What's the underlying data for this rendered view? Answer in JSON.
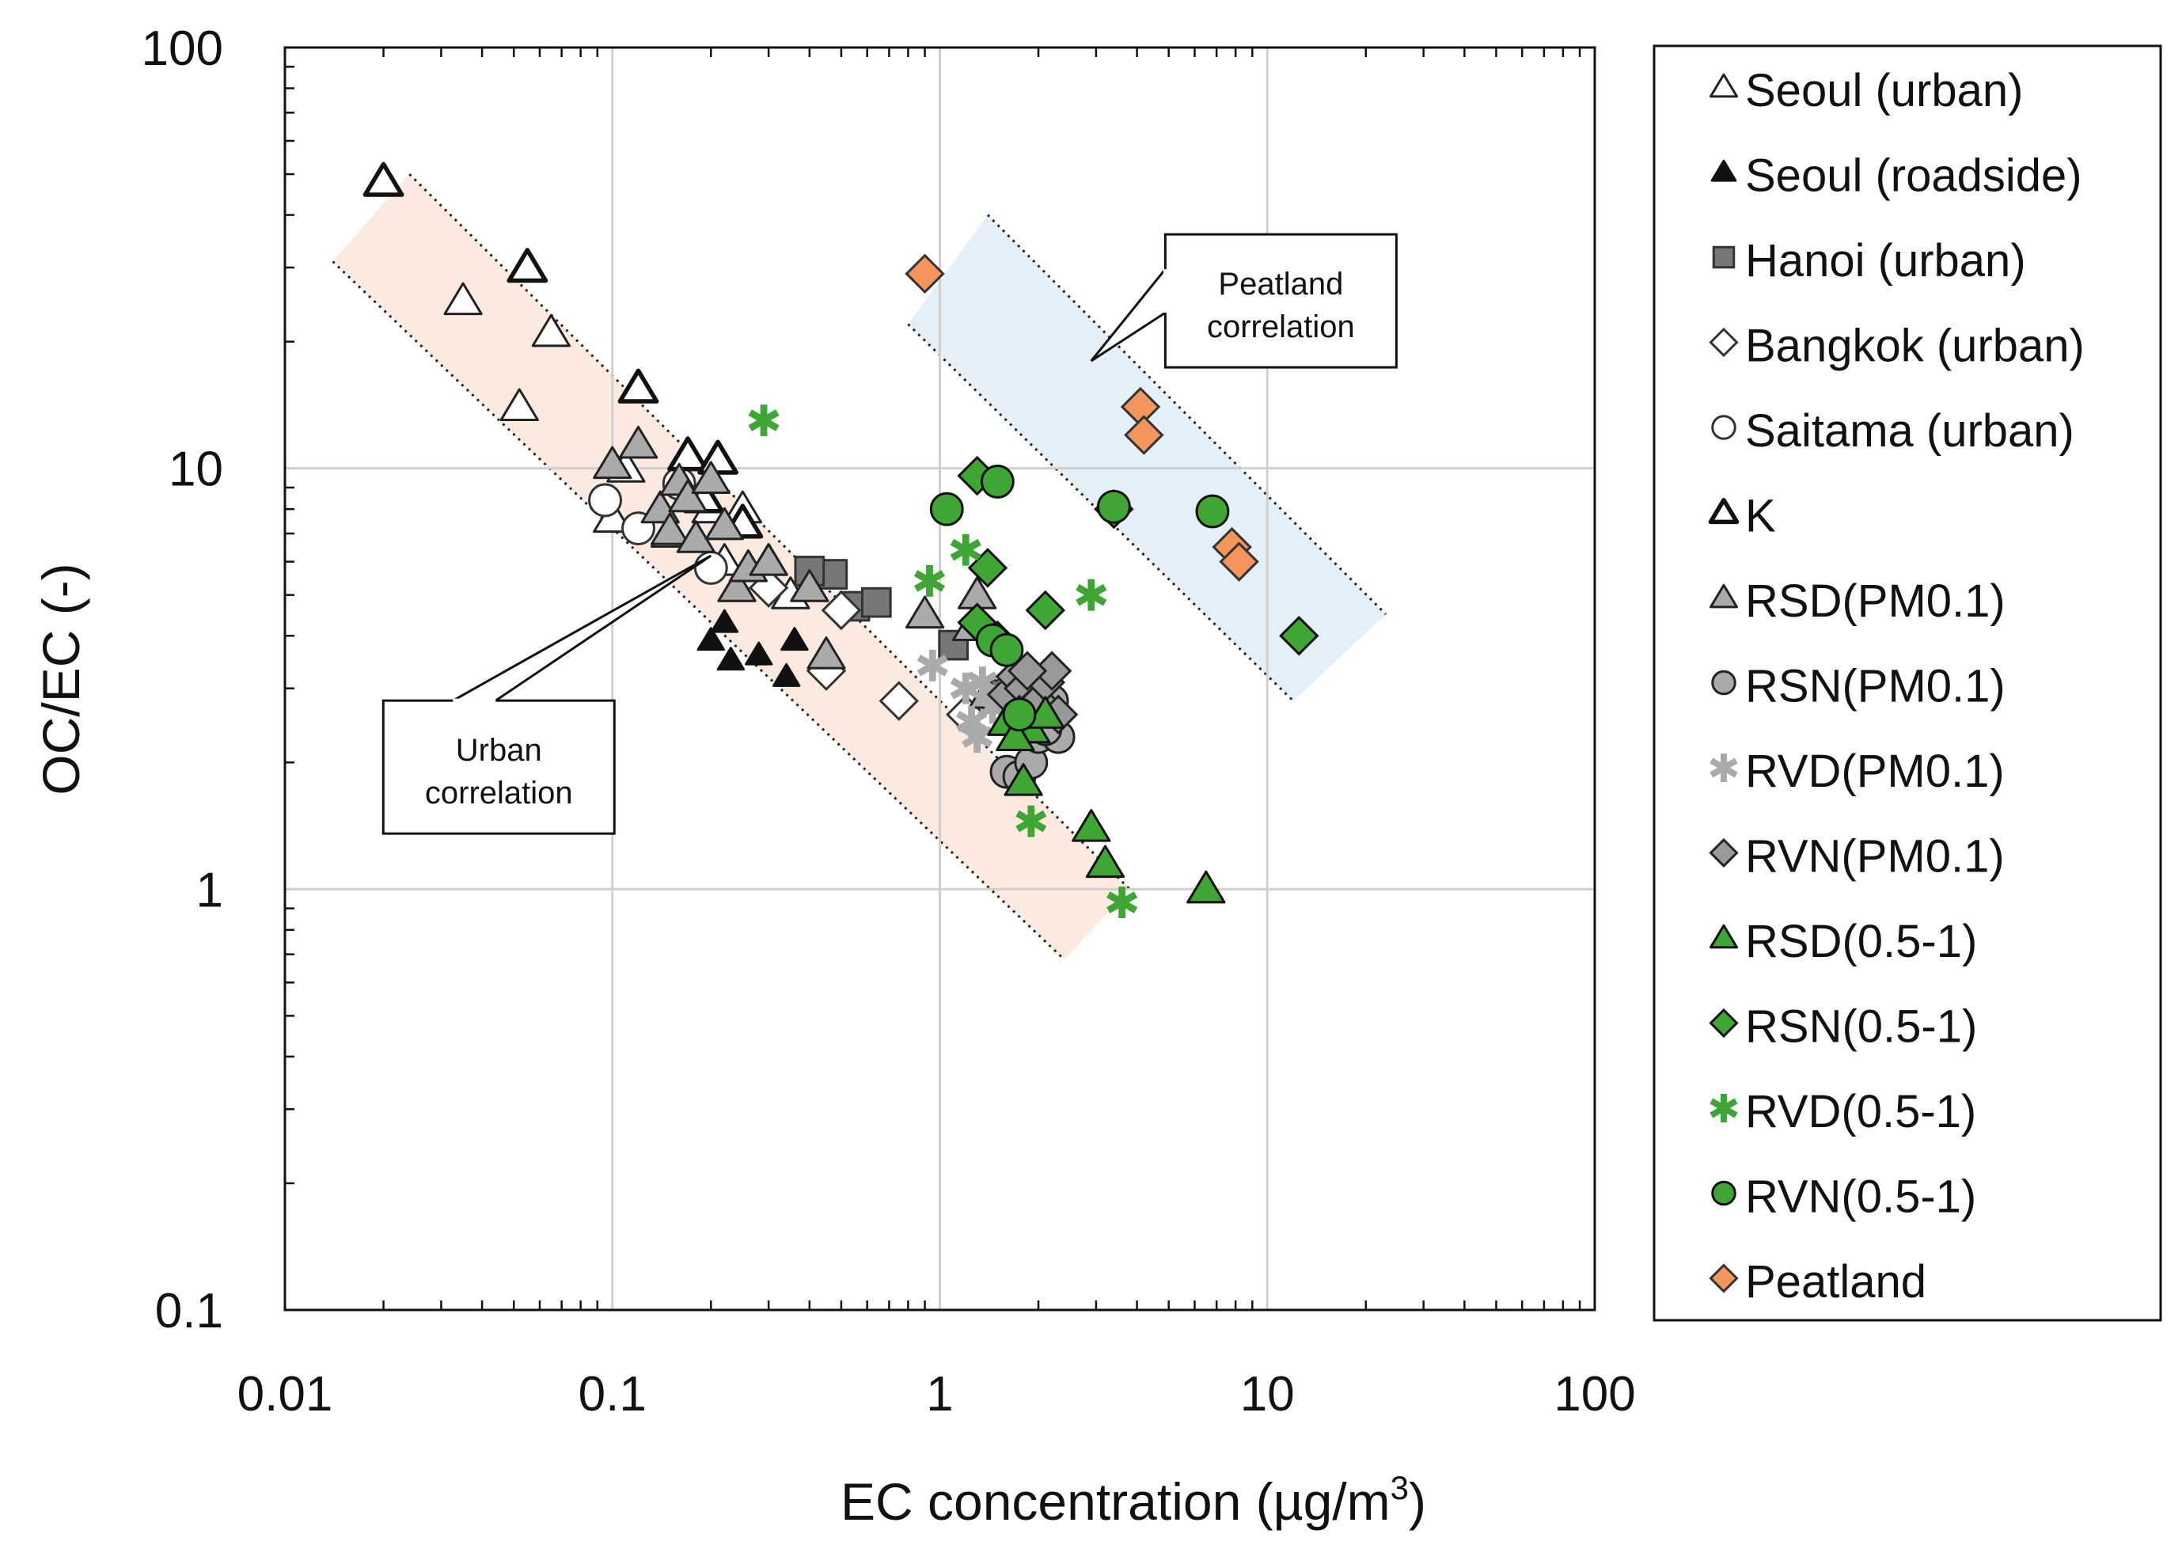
{
  "chart_data": {
    "type": "scatter",
    "xlabel": "EC concentration (µg/m",
    "xlabel_sup": "3",
    "xlabel_end": ")",
    "ylabel": "OC/EC (-)",
    "xscale": "log",
    "yscale": "log",
    "xlim": [
      0.01,
      100
    ],
    "ylim": [
      0.1,
      100
    ],
    "xticks": [
      {
        "v": 0.01,
        "label": "0.01"
      },
      {
        "v": 0.1,
        "label": "0.1"
      },
      {
        "v": 1,
        "label": "1"
      },
      {
        "v": 10,
        "label": "10"
      },
      {
        "v": 100,
        "label": "100"
      }
    ],
    "yticks": [
      {
        "v": 0.1,
        "label": "0.1"
      },
      {
        "v": 1,
        "label": "1"
      },
      {
        "v": 10,
        "label": "10"
      },
      {
        "v": 100,
        "label": "100"
      }
    ],
    "grid": true,
    "legend_position": "right",
    "bands": [
      {
        "name": "urban-band",
        "color": "#fbe3d6",
        "lower_line": [
          [
            0.014,
            31
          ],
          [
            2.4,
            0.68
          ]
        ],
        "upper_line": [
          [
            0.024,
            50
          ],
          [
            3.8,
            1.0
          ]
        ]
      },
      {
        "name": "peatland-band",
        "color": "#dce9f6",
        "lower_line": [
          [
            0.8,
            22
          ],
          [
            12,
            2.8
          ]
        ],
        "upper_line": [
          [
            1.4,
            40
          ],
          [
            23,
            4.5
          ]
        ]
      }
    ],
    "annotations": [
      {
        "name": "urban-correlation-label",
        "lines": [
          "Urban",
          "correlation"
        ],
        "box_center": [
          0.045,
          1.95
        ],
        "target": [
          0.2,
          6.2
        ]
      },
      {
        "name": "peatland-correlation-label",
        "lines": [
          "Peatland",
          "correlation"
        ],
        "box_center": [
          11,
          25
        ],
        "target": [
          2.9,
          18
        ]
      }
    ],
    "series": [
      {
        "name": "Seoul (urban)",
        "marker": "triangle",
        "fill": "#ffffff",
        "edge": "#222222",
        "points": [
          [
            0.035,
            25
          ],
          [
            0.052,
            14
          ],
          [
            0.065,
            21
          ],
          [
            0.1,
            7.6
          ],
          [
            0.11,
            10
          ],
          [
            0.15,
            7
          ],
          [
            0.2,
            8
          ],
          [
            0.22,
            6
          ],
          [
            0.25,
            8
          ],
          [
            0.3,
            6
          ],
          [
            0.35,
            5
          ]
        ]
      },
      {
        "name": "Seoul (roadside)",
        "marker": "triangle",
        "fill": "#111111",
        "edge": "#111111",
        "size": 0.7,
        "points": [
          [
            0.2,
            3.9
          ],
          [
            0.23,
            3.5
          ],
          [
            0.28,
            3.6
          ],
          [
            0.34,
            3.2
          ],
          [
            0.36,
            3.9
          ],
          [
            0.22,
            4.3
          ]
        ]
      },
      {
        "name": "Hanoi (urban)",
        "marker": "square",
        "fill": "#777777",
        "edge": "#333333",
        "points": [
          [
            0.47,
            5.6
          ],
          [
            0.55,
            4.7
          ],
          [
            0.64,
            4.8
          ],
          [
            1.1,
            3.8
          ],
          [
            1.5,
            2.9
          ],
          [
            0.4,
            5.7
          ]
        ]
      },
      {
        "name": "Bangkok (urban)",
        "marker": "diamond",
        "fill": "#ffffff",
        "edge": "#333333",
        "points": [
          [
            0.75,
            2.8
          ],
          [
            0.45,
            3.3
          ],
          [
            1.2,
            2.6
          ],
          [
            0.3,
            5.2
          ],
          [
            0.5,
            4.6
          ]
        ]
      },
      {
        "name": "Saitama (urban)",
        "marker": "circle",
        "fill": "#ffffff",
        "edge": "#333333",
        "points": [
          [
            0.095,
            8.4
          ],
          [
            0.12,
            7.2
          ],
          [
            0.2,
            5.8
          ],
          [
            0.16,
            9.2
          ]
        ]
      },
      {
        "name": "K",
        "marker": "triangle",
        "fill": "#ffffff",
        "edge": "#111111",
        "bold": true,
        "points": [
          [
            0.02,
            48
          ],
          [
            0.055,
            30
          ],
          [
            0.12,
            15.5
          ],
          [
            0.17,
            10.7
          ],
          [
            0.21,
            10.5
          ],
          [
            0.19,
            8.5
          ],
          [
            0.25,
            7.4
          ]
        ]
      },
      {
        "name": "RSD(PM0.1)",
        "marker": "triangle",
        "fill": "#aaaaaa",
        "edge": "#222222",
        "points": [
          [
            0.9,
            4.5
          ],
          [
            1.3,
            5.0
          ],
          [
            1.25,
            4.2
          ],
          [
            1.4,
            2.9
          ],
          [
            1.6,
            2.5
          ],
          [
            0.1,
            10.2
          ],
          [
            0.12,
            11.4
          ],
          [
            0.14,
            8.0
          ],
          [
            0.15,
            7.1
          ],
          [
            0.16,
            9.3
          ],
          [
            0.17,
            8.5
          ],
          [
            0.18,
            6.8
          ],
          [
            0.2,
            9.4
          ],
          [
            0.22,
            7.3
          ],
          [
            0.24,
            5.2
          ],
          [
            0.26,
            5.8
          ],
          [
            0.3,
            6.0
          ],
          [
            0.4,
            5.2
          ],
          [
            0.45,
            3.6
          ]
        ]
      },
      {
        "name": "RSN(PM0.1)",
        "marker": "circle",
        "fill": "#aaaaaa",
        "edge": "#222222",
        "points": [
          [
            1.6,
            1.9
          ],
          [
            1.75,
            1.85
          ],
          [
            1.9,
            2.0
          ],
          [
            2.0,
            2.3
          ],
          [
            2.1,
            2.6
          ],
          [
            2.2,
            2.8
          ],
          [
            2.3,
            2.3
          ],
          [
            1.8,
            2.5
          ],
          [
            1.9,
            2.9
          ],
          [
            2.1,
            2.4
          ]
        ]
      },
      {
        "name": "RVD(PM0.1)",
        "marker": "asterisk",
        "fill": "#aaaaaa",
        "edge": "#aaaaaa",
        "points": [
          [
            0.95,
            3.4
          ],
          [
            1.2,
            3.0
          ],
          [
            1.25,
            2.5
          ],
          [
            1.3,
            2.3
          ],
          [
            1.45,
            2.7
          ],
          [
            1.55,
            2.9
          ],
          [
            1.35,
            3.1
          ]
        ]
      },
      {
        "name": "RVN(PM0.1)",
        "marker": "diamond",
        "fill": "#999999",
        "edge": "#222222",
        "points": [
          [
            1.6,
            2.9
          ],
          [
            1.7,
            3.2
          ],
          [
            1.8,
            3.0
          ],
          [
            1.9,
            2.7
          ],
          [
            2.0,
            2.8
          ],
          [
            2.1,
            3.1
          ],
          [
            2.2,
            3.3
          ],
          [
            1.75,
            2.6
          ],
          [
            2.3,
            2.6
          ],
          [
            1.85,
            3.3
          ]
        ]
      },
      {
        "name": "RSD(0.5-1)",
        "marker": "triangle",
        "fill": "#3fa535",
        "edge": "#111111",
        "points": [
          [
            1.8,
            1.8
          ],
          [
            1.6,
            2.5
          ],
          [
            1.9,
            2.4
          ],
          [
            2.1,
            2.6
          ],
          [
            2.9,
            1.4
          ],
          [
            3.2,
            1.15
          ],
          [
            6.5,
            1.0
          ],
          [
            1.7,
            2.3
          ]
        ]
      },
      {
        "name": "RSN(0.5-1)",
        "marker": "diamond",
        "fill": "#3fa535",
        "edge": "#111111",
        "points": [
          [
            1.3,
            9.6
          ],
          [
            1.4,
            5.8
          ],
          [
            1.5,
            3.9
          ],
          [
            2.1,
            4.6
          ],
          [
            1.3,
            4.3
          ],
          [
            12.5,
            4.0
          ],
          [
            3.4,
            8.0
          ]
        ]
      },
      {
        "name": "RVD(0.5-1)",
        "marker": "asterisk",
        "fill": "#3fa535",
        "edge": "#3fa535",
        "points": [
          [
            0.29,
            13
          ],
          [
            0.93,
            5.4
          ],
          [
            1.2,
            6.4
          ],
          [
            2.9,
            5.0
          ],
          [
            1.9,
            1.45
          ],
          [
            3.6,
            0.93
          ]
        ]
      },
      {
        "name": "RVN(0.5-1)",
        "marker": "circle",
        "fill": "#3fa535",
        "edge": "#111111",
        "points": [
          [
            1.05,
            8.0
          ],
          [
            1.5,
            9.3
          ],
          [
            1.45,
            3.9
          ],
          [
            1.6,
            3.7
          ],
          [
            1.75,
            2.6
          ],
          [
            3.4,
            8.1
          ],
          [
            6.8,
            7.9
          ]
        ]
      },
      {
        "name": "Peatland",
        "marker": "diamond",
        "fill": "#f4955e",
        "edge": "#333333",
        "points": [
          [
            0.9,
            29
          ],
          [
            4.1,
            14
          ],
          [
            4.2,
            12
          ],
          [
            7.8,
            6.5
          ],
          [
            8.2,
            6.0
          ]
        ]
      }
    ]
  }
}
